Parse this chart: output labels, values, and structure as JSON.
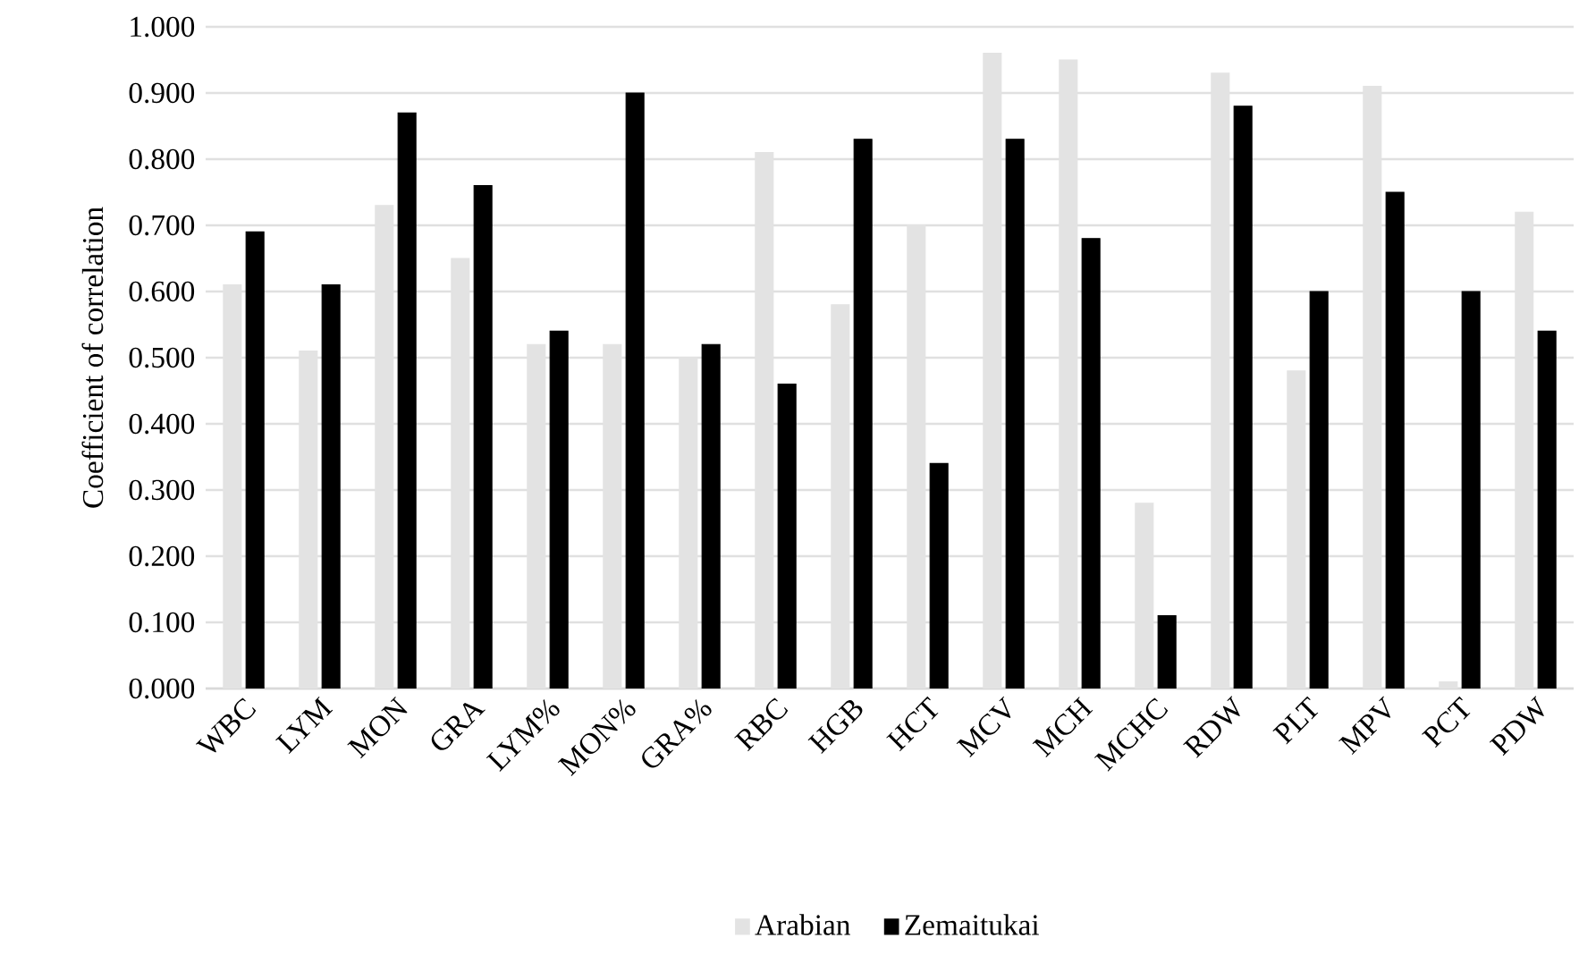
{
  "chart_data": {
    "type": "bar",
    "ylabel": "Coefficient of correlation",
    "categories": [
      "WBC",
      "LYM",
      "MON",
      "GRA",
      "LYM%",
      "MON%",
      "GRA%",
      "RBC",
      "HGB",
      "HCT",
      "MCV",
      "MCH",
      "MCHC",
      "RDW",
      "PLT",
      "MPV",
      "PCT",
      "PDW"
    ],
    "series": [
      {
        "name": "Arabian",
        "color": "#e3e3e3",
        "values": [
          0.61,
          0.51,
          0.73,
          0.65,
          0.52,
          0.52,
          0.5,
          0.81,
          0.58,
          0.7,
          0.96,
          0.95,
          0.28,
          0.93,
          0.48,
          0.91,
          0.01,
          0.72
        ]
      },
      {
        "name": "Zemaitukai",
        "color": "#000000",
        "values": [
          0.69,
          0.61,
          0.87,
          0.76,
          0.54,
          0.9,
          0.52,
          0.46,
          0.83,
          0.34,
          0.83,
          0.68,
          0.11,
          0.88,
          0.6,
          0.75,
          0.6,
          0.54
        ]
      }
    ],
    "ylim": [
      0,
      1
    ],
    "yticks": [
      {
        "value": 0,
        "label": "0.000"
      },
      {
        "value": 0.1,
        "label": "0.100"
      },
      {
        "value": 0.2,
        "label": "0.200"
      },
      {
        "value": 0.3,
        "label": "0.300"
      },
      {
        "value": 0.4,
        "label": "0.400"
      },
      {
        "value": 0.5,
        "label": "0.500"
      },
      {
        "value": 0.6,
        "label": "0.600"
      },
      {
        "value": 0.7,
        "label": "0.700"
      },
      {
        "value": 0.8,
        "label": "0.800"
      },
      {
        "value": 0.9,
        "label": "0.900"
      },
      {
        "value": 1,
        "label": "1.000"
      }
    ],
    "grid": "y",
    "legend": "bottom"
  }
}
